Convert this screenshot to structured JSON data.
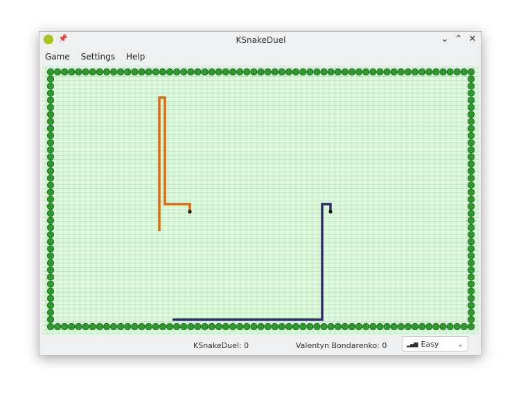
{
  "window": {
    "title": "KSnakeDuel",
    "icon": "snake-app-icon",
    "buttons": [
      "minimize",
      "maximize",
      "close"
    ]
  },
  "menu": {
    "items": [
      "Game",
      "Settings",
      "Help"
    ]
  },
  "status": {
    "player1": "KSnakeDuel: 0",
    "player2": "Valentyn Bondarenko: 0",
    "difficulty": "Easy",
    "difficulty_icon": "signal-bars-icon"
  },
  "colors": {
    "player1": "#e06a10",
    "player2": "#2d2d6e",
    "wall": "#2e9a2e",
    "field": "#d4f5d4"
  }
}
